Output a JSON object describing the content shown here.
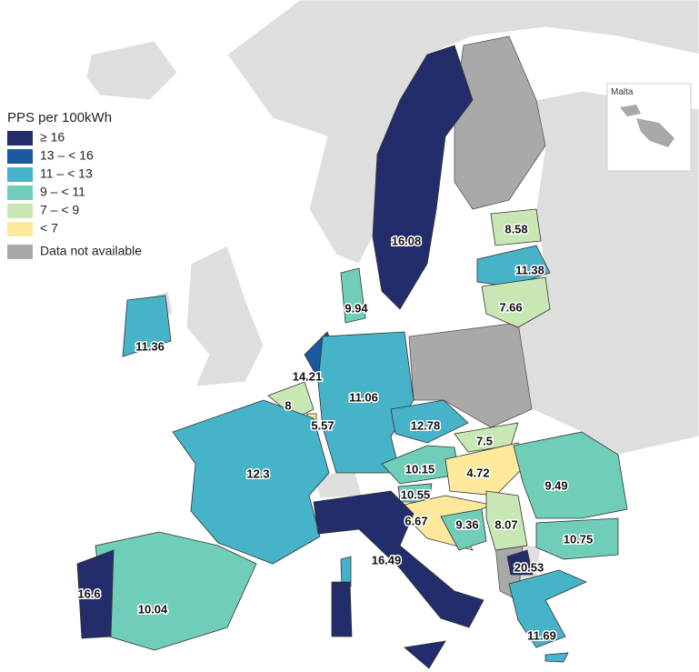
{
  "legend": {
    "title": "PPS per 100kWh",
    "items": [
      {
        "label": "≥ 16",
        "color": "#232d6b"
      },
      {
        "label": "13 – < 16",
        "color": "#1c58a0"
      },
      {
        "label": "11 – < 13",
        "color": "#46b3c9"
      },
      {
        "label": "9 – < 11",
        "color": "#6fcdb8"
      },
      {
        "label": "7 – < 9",
        "color": "#c9e7b4"
      },
      {
        "label": "< 7",
        "color": "#fde89b"
      },
      {
        "label": "Data not available",
        "color": "#a9a9a9"
      }
    ]
  },
  "inset": {
    "label": "Malta"
  },
  "regions": [
    {
      "value": 16.08,
      "color": "#232d6b"
    },
    {
      "value": 8.58,
      "color": "#c9e7b4"
    },
    {
      "value": 11.38,
      "color": "#46b3c9"
    },
    {
      "value": 7.66,
      "color": "#c9e7b4"
    },
    {
      "value": 9.94,
      "color": "#6fcdb8"
    },
    {
      "value": 11.36,
      "color": "#46b3c9"
    },
    {
      "value": 14.21,
      "color": "#1c58a0"
    },
    {
      "value": 8,
      "color": "#c9e7b4"
    },
    {
      "value": 5.57,
      "color": "#fde89b"
    },
    {
      "value": 11.06,
      "color": "#46b3c9"
    },
    {
      "value": 12.78,
      "color": "#46b3c9"
    },
    {
      "value": 7.5,
      "color": "#c9e7b4"
    },
    {
      "value": 10.15,
      "color": "#6fcdb8"
    },
    {
      "value": 4.72,
      "color": "#fde89b"
    },
    {
      "value": 10.55,
      "color": "#6fcdb8"
    },
    {
      "value": 6.67,
      "color": "#fde89b"
    },
    {
      "value": 9.36,
      "color": "#6fcdb8"
    },
    {
      "value": 8.07,
      "color": "#c9e7b4"
    },
    {
      "value": 9.49,
      "color": "#6fcdb8"
    },
    {
      "value": 10.75,
      "color": "#6fcdb8"
    },
    {
      "value": 20.53,
      "color": "#232d6b"
    },
    {
      "value": 11.69,
      "color": "#46b3c9"
    },
    {
      "value": 12.3,
      "color": "#46b3c9"
    },
    {
      "value": 10.04,
      "color": "#6fcdb8"
    },
    {
      "value": 16.6,
      "color": "#232d6b"
    },
    {
      "value": 16.49,
      "color": "#232d6b"
    }
  ]
}
